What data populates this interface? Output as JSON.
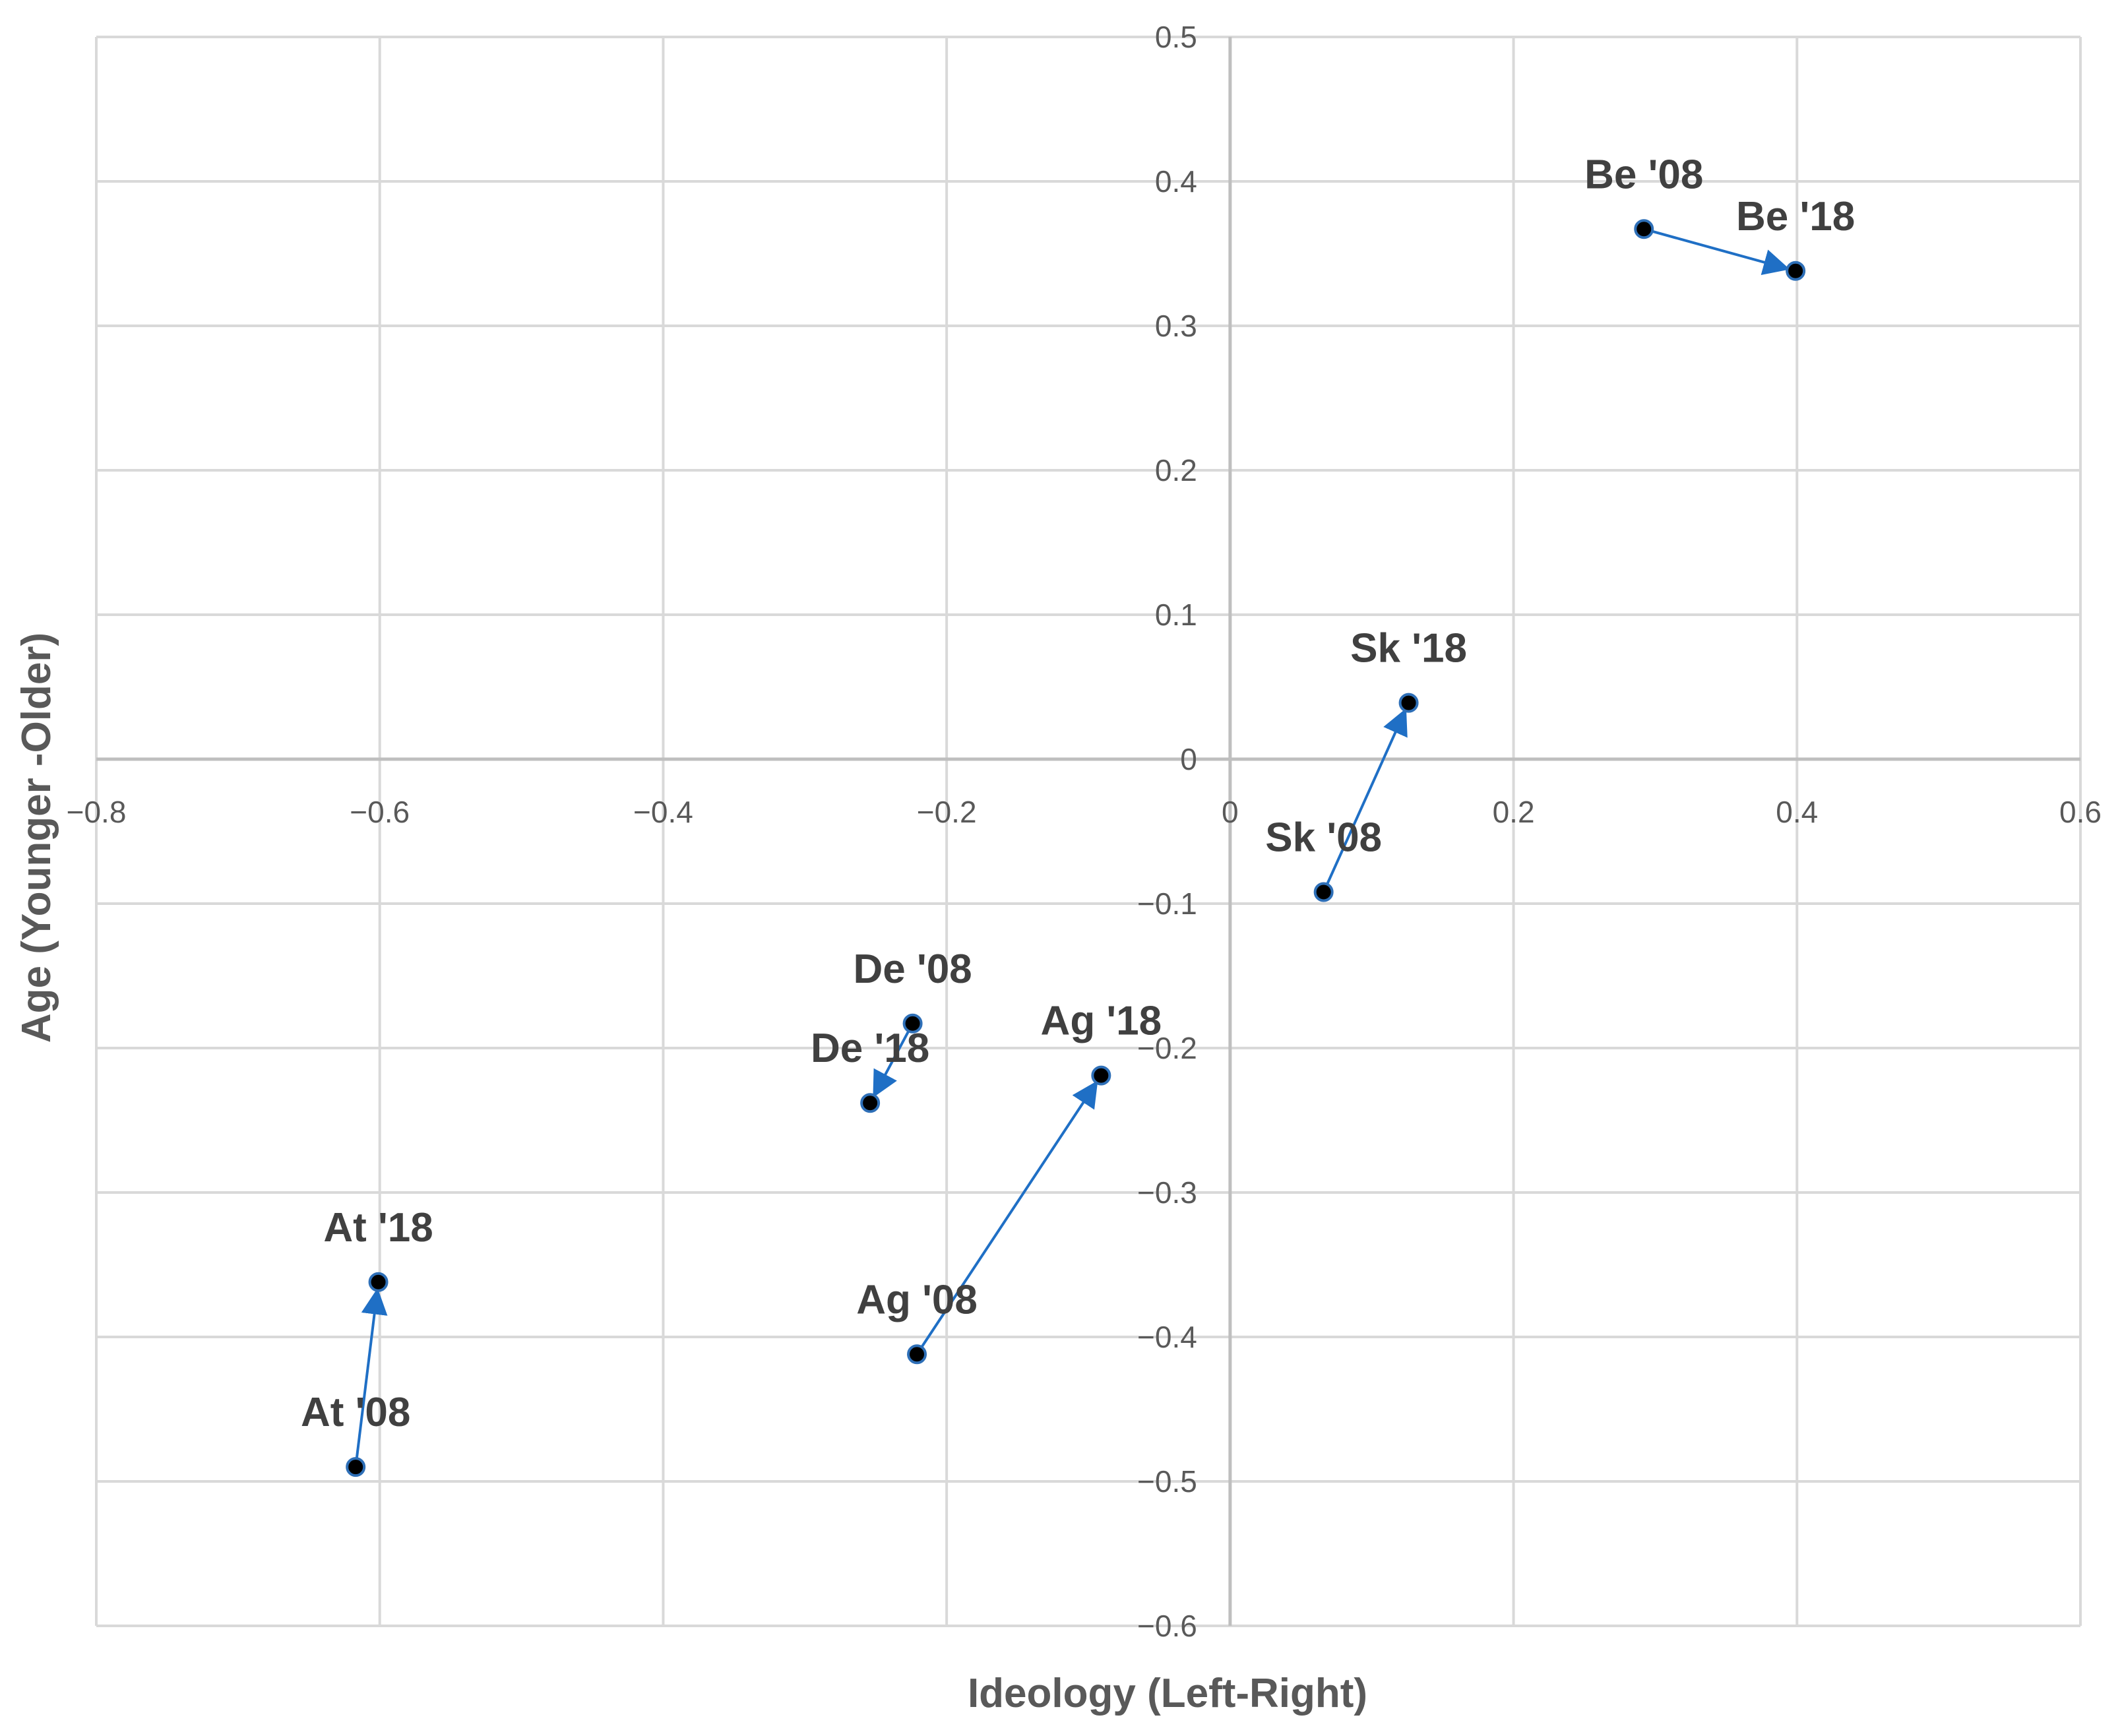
{
  "chart_data": {
    "type": "scatter",
    "title": "",
    "xlabel": "Ideology (Left-Right)",
    "ylabel": "Age (Younger -Older)",
    "xlim": [
      -0.8,
      0.6
    ],
    "ylim": [
      -0.6,
      0.5
    ],
    "x_ticks": [
      -0.8,
      -0.6,
      -0.4,
      -0.2,
      0,
      0.2,
      0.4,
      0.6
    ],
    "y_ticks": [
      0.5,
      0.4,
      0.3,
      0.2,
      0.1,
      0,
      -0.1,
      -0.2,
      -0.3,
      -0.4,
      -0.5,
      -0.6
    ],
    "x_tick_labels": [
      "−0.8",
      "−0.6",
      "−0.4",
      "−0.2",
      "0",
      "0.2",
      "0.4",
      "0.6"
    ],
    "y_tick_labels": [
      "0.5",
      "0.4",
      "0.3",
      "0.2",
      "0.1",
      "0",
      "−0.1",
      "−0.2",
      "−0.3",
      "−0.4",
      "−0.5",
      "−0.6"
    ],
    "grid": true,
    "points": [
      {
        "label": "Be '08",
        "x": 0.292,
        "y": 0.367
      },
      {
        "label": "Be '18",
        "x": 0.399,
        "y": 0.338
      },
      {
        "label": "Sk '08",
        "x": 0.066,
        "y": -0.092
      },
      {
        "label": "Sk '18",
        "x": 0.126,
        "y": 0.039
      },
      {
        "label": "De '08",
        "x": -0.224,
        "y": -0.183
      },
      {
        "label": "De '18",
        "x": -0.254,
        "y": -0.238
      },
      {
        "label": "Ag '08",
        "x": -0.221,
        "y": -0.412
      },
      {
        "label": "Ag '18",
        "x": -0.091,
        "y": -0.219
      },
      {
        "label": "At '08",
        "x": -0.617,
        "y": -0.49
      },
      {
        "label": "At '18",
        "x": -0.601,
        "y": -0.362
      }
    ],
    "arrows": [
      {
        "from": "Be '08",
        "to": "Be '18"
      },
      {
        "from": "Sk '08",
        "to": "Sk '18"
      },
      {
        "from": "De '08",
        "to": "De '18"
      },
      {
        "from": "Ag '08",
        "to": "Ag '18"
      },
      {
        "from": "At '08",
        "to": "At '18"
      }
    ],
    "colors": {
      "arrow": "#1F6FC5",
      "marker_fill": "#000000",
      "marker_edge": "#2E6FB7",
      "grid": "#D9D9D9",
      "axis_line": "#BFBFBF",
      "tick_text": "#595959",
      "label_text": "#404040"
    }
  }
}
